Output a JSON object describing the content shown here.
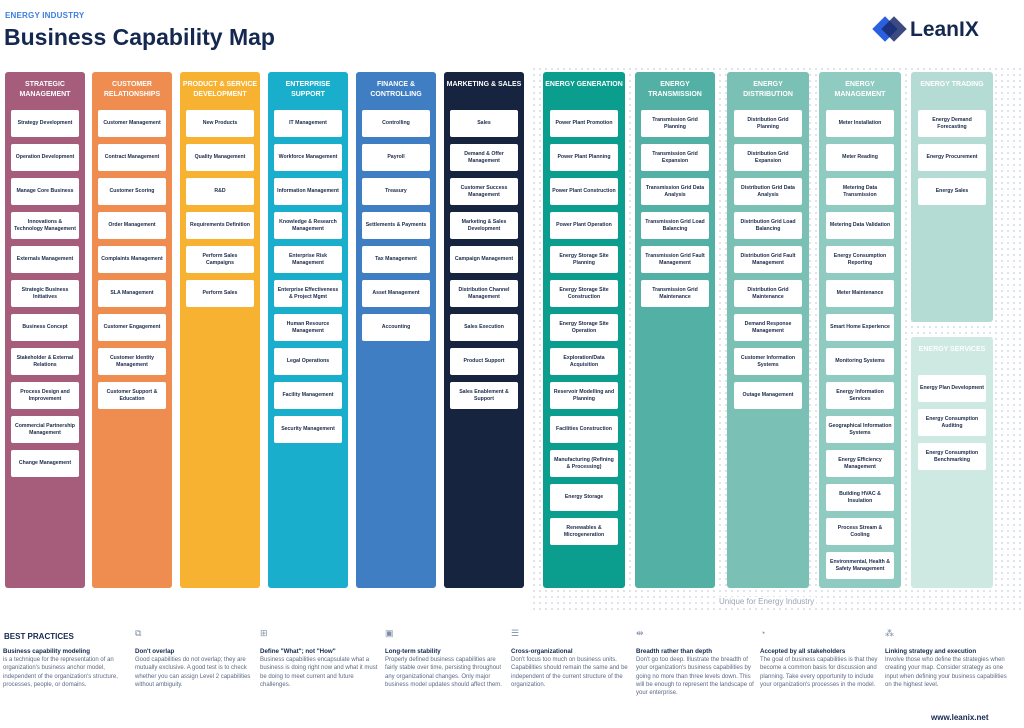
{
  "header": {
    "eyebrow": "ENERGY INDUSTRY",
    "title": "Business Capability Map",
    "logo": "LeanIX"
  },
  "unique_label": "Unique for Energy Industry",
  "columns": [
    {
      "name": "Strategic Management",
      "color": "#a65c7b",
      "items": [
        "Strategy Development",
        "Operation Development",
        "Manage Core Business",
        "Innovations & Technology Management",
        "Externals Management",
        "Strategic Business Initiatives",
        "Business Concept",
        "Stakeholder & External Relations",
        "Process Design and Improvement",
        "Commercial Partnership Management",
        "Change Management"
      ]
    },
    {
      "name": "Customer Relationships",
      "color": "#ef8c50",
      "items": [
        "Customer Management",
        "Contract Management",
        "Customer Scoring",
        "Order Management",
        "Complaints Management",
        "SLA Management",
        "Customer Engagement",
        "Customer Identity Management",
        "Customer Support & Education"
      ]
    },
    {
      "name": "Product & Service Development",
      "color": "#f8b232",
      "items": [
        "New Products",
        "Quality Management",
        "R&D",
        "Requirements Definition",
        "Perform Sales Campaigns",
        "Perform Sales"
      ]
    },
    {
      "name": "Enterprise Support",
      "color": "#19afcc",
      "items": [
        "IT Management",
        "Workforce Management",
        "Information Management",
        "Knowledge & Research Management",
        "Enterprise Risk Management",
        "Enterprise Effectiveness & Project Mgmt",
        "Human Resource Management",
        "Legal Operations",
        "Facility Management",
        "Security Management"
      ]
    },
    {
      "name": "Finance & Controlling",
      "color": "#3f7ec3",
      "items": [
        "Controlling",
        "Payroll",
        "Treasury",
        "Settlements & Payments",
        "Tax Management",
        "Asset Management",
        "Accounting"
      ]
    },
    {
      "name": "Marketing & Sales",
      "color": "#17243f",
      "items": [
        "Sales",
        "Demand & Offer Management",
        "Customer Success Management",
        "Marketing & Sales Development",
        "Campaign Management",
        "Distribution Channel Management",
        "Sales Execution",
        "Product Support",
        "Sales Enablement & Support"
      ]
    },
    {
      "name": "Energy Generation",
      "color": "#0b9d8d",
      "items": [
        "Power Plant Promotion",
        "Power Plant Planning",
        "Power Plant Construction",
        "Power Plant Operation",
        "Energy Storage Site Planning",
        "Energy Storage Site Construction",
        "Energy Storage Site Operation",
        "Exploration/Data Acquisition",
        "Reservoir Modelling and Planning",
        "Facilities Construction",
        "Manufacturing (Refining & Processing)",
        "Energy Storage",
        "Renewables & Microgeneration"
      ]
    },
    {
      "name": "Energy Transmission",
      "color": "#52b1a4",
      "items": [
        "Transmission Grid Planning",
        "Transmission Grid Expansion",
        "Transmission Grid Data Analysis",
        "Transmission Grid Load Balancing",
        "Transmission Grid Fault Management",
        "Transmission Grid Maintenance"
      ]
    },
    {
      "name": "Energy Distribution",
      "color": "#7bc0b5",
      "items": [
        "Distribution Grid Planning",
        "Distribution Grid Expansion",
        "Distribution Grid Data Analysis",
        "Distribution Grid Load Balancing",
        "Distribution Grid Fault Management",
        "Distribution Grid Maintenance",
        "Demand Response Management",
        "Customer Information Systems",
        "Outage Management"
      ]
    },
    {
      "name": "Energy Management",
      "color": "#90cbc1",
      "items": [
        "Meter Installation",
        "Meter Reading",
        "Metering Data Transmission",
        "Metering Data Validation",
        "Energy Consumption Reporting",
        "Meter Maintenance",
        "Smart Home Experience",
        "Monitoring Systems",
        "Energy Information Services",
        "Geographical Information Systems",
        "Energy Efficiency Management",
        "Building HVAC & Insulation",
        "Process Stream & Cooling",
        "Environmental, Health & Safety Management"
      ]
    },
    {
      "name": "Energy Trading",
      "color": "#b5dcd4",
      "items": [
        "Energy Demand Forecasting",
        "Energy Procurement",
        "Energy Sales"
      ]
    },
    {
      "name": "Energy Services",
      "color": "#cee8e2",
      "items": [
        "Energy Plan Development",
        "Energy Consumption Auditing",
        "Energy Consumption Benchmarking"
      ]
    }
  ],
  "best_practices": {
    "title": "BEST PRACTICES",
    "items": [
      {
        "icon": "none",
        "heading": "Business capability modeling",
        "body": "is a technique for the representation of an organization's business anchor model, independent of the organization's structure, processes, people, or domains."
      },
      {
        "icon": "overlap-icon",
        "heading": "Don't overlap",
        "body": "Good capabilities do not overlap; they are mutually exclusive. A good test is to check whether you can assign Level 2 capabilities without ambiguity."
      },
      {
        "icon": "grid-icon",
        "heading": "Define \"What\"; not \"How\"",
        "body": "Business capabilities encapsulate what a business is doing right now and what it must be doing to meet current and future challenges."
      },
      {
        "icon": "calendar-icon",
        "heading": "Long-term stability",
        "body": "Properly defined business capabilities are fairly stable over time, persisting throughout any organizational changes. Only major business model updates should affect them."
      },
      {
        "icon": "layers-icon",
        "heading": "Cross-organizational",
        "body": "Don't focus too much on business units. Capabilities should remain the same and be independent of the current structure of the organization."
      },
      {
        "icon": "width-arrows-icon",
        "heading": "Breadth rather than depth",
        "body": "Don't go too deep. Illustrate the breadth of your organization's business capabilities by going no more than three levels down. This will be enough to represent the landscape of your enterprise."
      },
      {
        "icon": "check-circle-icon",
        "heading": "Accepted by all stakeholders",
        "body": "The goal of business capabilities is that they become a common basis for discussion and planning. Take every opportunity to include your organization's processes in the model."
      },
      {
        "icon": "network-icon",
        "heading": "Linking strategy and execution",
        "body": "Involve those who define the strategies when creating your map. Consider strategy as one input when defining your business capabilities on the highest level."
      }
    ]
  },
  "footer_url": "www.leanix.net"
}
